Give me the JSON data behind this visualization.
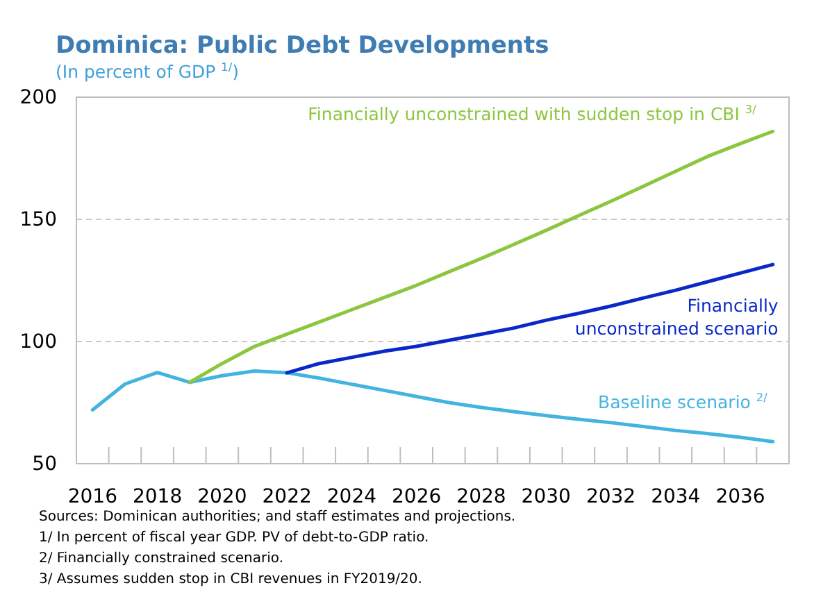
{
  "chart_data": {
    "type": "line",
    "title": "Dominica: Public Debt Developments",
    "subtitle": "(In percent of GDP $^{1/}$)",
    "xlim": [
      2015.5,
      2037.5
    ],
    "xticks": [
      {
        "value": 2016,
        "label": "2016"
      },
      {
        "value": 2018,
        "label": "2018"
      },
      {
        "value": 2020,
        "label": "2020"
      },
      {
        "value": 2022,
        "label": "2022"
      },
      {
        "value": 2024,
        "label": "2024"
      },
      {
        "value": 2026,
        "label": "2026"
      },
      {
        "value": 2028,
        "label": "2028"
      },
      {
        "value": 2030,
        "label": "2030"
      },
      {
        "value": 2032,
        "label": "2032"
      },
      {
        "value": 2034,
        "label": "2034"
      },
      {
        "value": 2036,
        "label": "2036"
      },
      {
        "value": 2016.5,
        "label": null
      },
      {
        "value": 2017.5,
        "label": null
      },
      {
        "value": 2018.5,
        "label": null
      },
      {
        "value": 2019.5,
        "label": null
      },
      {
        "value": 2020.5,
        "label": null
      },
      {
        "value": 2021.5,
        "label": null
      },
      {
        "value": 2022.5,
        "label": null
      },
      {
        "value": 2023.5,
        "label": null
      },
      {
        "value": 2024.5,
        "label": null
      },
      {
        "value": 2025.5,
        "label": null
      },
      {
        "value": 2026.5,
        "label": null
      },
      {
        "value": 2027.5,
        "label": null
      },
      {
        "value": 2028.5,
        "label": null
      },
      {
        "value": 2029.5,
        "label": null
      },
      {
        "value": 2030.5,
        "label": null
      },
      {
        "value": 2031.5,
        "label": null
      },
      {
        "value": 2032.5,
        "label": null
      },
      {
        "value": 2033.5,
        "label": null
      },
      {
        "value": 2034.5,
        "label": null
      },
      {
        "value": 2035.5,
        "label": null
      },
      {
        "value": 2036.5,
        "label": null
      }
    ],
    "ylim": [
      50,
      200
    ],
    "yticks": [
      50,
      100,
      150,
      200
    ],
    "grid": "y",
    "legend": false,
    "marker": "none",
    "line_style": "solid",
    "series": [
      {
        "name": "Baseline scenario $^{2/}$",
        "color": "#43b4e0",
        "x": [
          2016,
          2017,
          2018,
          2019,
          2020,
          2021,
          2022,
          2023,
          2024,
          2025,
          2026,
          2027,
          2028,
          2029,
          2030,
          2031,
          2032,
          2033,
          2034,
          2035,
          2036,
          2037
        ],
        "values": [
          72,
          82.6,
          87.3,
          83.3,
          86,
          87.9,
          87.2,
          85,
          82.5,
          80,
          77.5,
          75,
          73,
          71.3,
          69.7,
          68.2,
          66.8,
          65.2,
          63.6,
          62.3,
          60.8,
          59
        ]
      },
      {
        "name": "Financially unconstrained scenario",
        "color": "#0a28c8",
        "x": [
          2022,
          2023,
          2024,
          2025,
          2026,
          2027,
          2028,
          2029,
          2030,
          2031,
          2032,
          2033,
          2034,
          2035,
          2036,
          2037
        ],
        "values": [
          87.2,
          91,
          93.5,
          96,
          98,
          100.5,
          103,
          105.5,
          108.7,
          111.5,
          114.5,
          117.8,
          121,
          124.5,
          128,
          131.5
        ]
      },
      {
        "name": "Financially unconstrained with sudden stop in CBI $^{3/}$",
        "color": "#8cc63f",
        "x": [
          2019,
          2020,
          2021,
          2022,
          2023,
          2024,
          2025,
          2026,
          2027,
          2028,
          2029,
          2030,
          2031,
          2032,
          2033,
          2034,
          2035,
          2036,
          2037
        ],
        "values": [
          83.3,
          91,
          98,
          103,
          108,
          113,
          118,
          123,
          128.5,
          134,
          139.7,
          145.5,
          151.5,
          157.4,
          163.5,
          169.7,
          175.8,
          181,
          186
        ]
      }
    ],
    "annotations": [
      "Sources: Dominican authorities; and staff estimates and projections.",
      "1/ In percent of fiscal year GDP. PV of debt-to-GDP ratio.",
      "2/ Financially constrained scenario.",
      "3/ Assumes sudden stop in CBI revenues in FY2019/20."
    ]
  }
}
